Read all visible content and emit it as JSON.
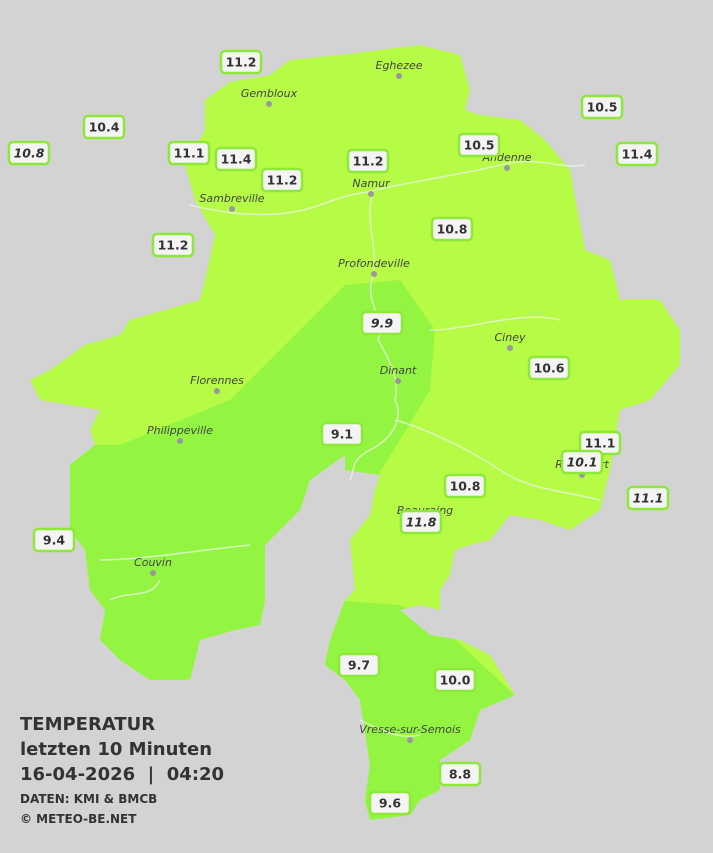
{
  "legend": {
    "title": "TEMPERATUR",
    "period": "letzten 10 Minuten",
    "datetime": "16-04-2026  |  04:20",
    "source": "DATEN: KMI & BMCB",
    "copyright": "© METEO-BE.NET"
  },
  "cities": [
    "Eghezee",
    "Gembloux",
    "Andenne",
    "Namur",
    "Sambreville",
    "Profondeville",
    "Ciney",
    "Dinant",
    "Florennes",
    "Philippeville",
    "Rochefort",
    "Beauraing",
    "Couvin",
    "Vresse-sur-Semois"
  ],
  "stations": [
    "11.2",
    "10.4",
    "10.8",
    "11.1",
    "11.4",
    "11.2",
    "11.2",
    "10.5",
    "10.5",
    "11.4",
    "11.2",
    "10.8",
    "9.9",
    "10.6",
    "9.1",
    "11.1",
    "10.1",
    "10.8",
    "11.8",
    "11.1",
    "9.4",
    "9.7",
    "10.0",
    "8.8",
    "9.6"
  ]
}
